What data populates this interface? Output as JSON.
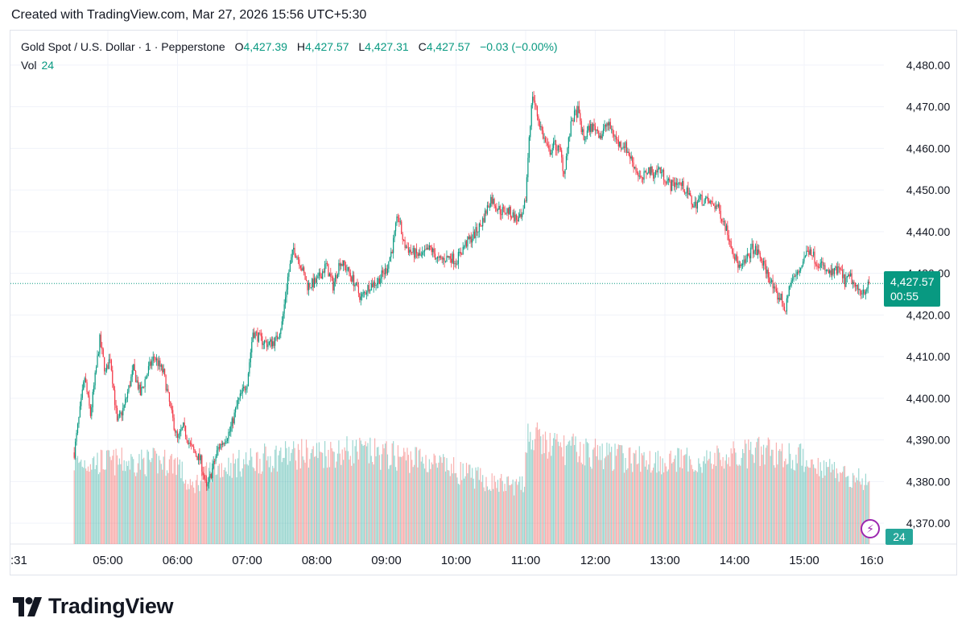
{
  "caption": "Created with TradingView.com, Mar 27, 2026 15:56 UTC+5:30",
  "legend": {
    "symbol": "Gold Spot / U.S. Dollar · 1 · Pepperstone",
    "o_label": "O",
    "o_value": "4,427.39",
    "h_label": "H",
    "h_value": "4,427.57",
    "l_label": "L",
    "l_value": "4,427.31",
    "c_label": "C",
    "c_value": "4,427.57",
    "change": "−0.03 (−0.00%)",
    "vol_label": "Vol",
    "vol_value": "24"
  },
  "price_tag": {
    "price": "4,427.57",
    "countdown": "00:55"
  },
  "vol_tag": "24",
  "colors": {
    "up": "#089981",
    "down": "#f23645",
    "up_vol": "#26a69a",
    "down_vol": "#ef5350",
    "grid": "#f0f3fa",
    "accent": "#9c27b0"
  },
  "brand": {
    "name": "TradingView",
    "icon": "tradingview-logo-icon"
  },
  "chart_data": {
    "type": "candlestick",
    "interval": "1 minute",
    "ylim": [
      4365,
      4485
    ],
    "y_ticks": [
      "4,370.00",
      "4,380.00",
      "4,390.00",
      "4,400.00",
      "4,410.00",
      "4,420.00",
      "4,430.00",
      "4,440.00",
      "4,450.00",
      "4,460.00",
      "4,470.00",
      "4,480.00"
    ],
    "x_ticks": [
      ":31",
      "05:00",
      "06:00",
      "07:00",
      "08:00",
      "09:00",
      "10:00",
      "11:00",
      "12:00",
      "13:00",
      "14:00",
      "15:00",
      "16:0"
    ],
    "last_price": 4427.57,
    "close_path": [
      [
        "04:31",
        4387
      ],
      [
        "04:40",
        4405
      ],
      [
        "04:45",
        4396
      ],
      [
        "04:53",
        4414
      ],
      [
        "04:58",
        4406
      ],
      [
        "05:02",
        4410
      ],
      [
        "05:08",
        4394
      ],
      [
        "05:14",
        4398
      ],
      [
        "05:22",
        4407
      ],
      [
        "05:28",
        4401
      ],
      [
        "05:35",
        4407
      ],
      [
        "05:40",
        4410
      ],
      [
        "05:48",
        4406
      ],
      [
        "05:55",
        4396
      ],
      [
        "06:00",
        4390
      ],
      [
        "06:05",
        4393
      ],
      [
        "06:12",
        4388
      ],
      [
        "06:20",
        4385
      ],
      [
        "06:25",
        4378
      ],
      [
        "06:35",
        4388
      ],
      [
        "06:45",
        4392
      ],
      [
        "06:52",
        4399
      ],
      [
        "07:00",
        4404
      ],
      [
        "07:05",
        4416
      ],
      [
        "07:12",
        4414
      ],
      [
        "07:18",
        4413
      ],
      [
        "07:25",
        4414
      ],
      [
        "07:30",
        4418
      ],
      [
        "07:35",
        4429
      ],
      [
        "07:40",
        4436
      ],
      [
        "07:45",
        4433
      ],
      [
        "07:52",
        4427
      ],
      [
        "08:00",
        4428
      ],
      [
        "08:08",
        4432
      ],
      [
        "08:14",
        4427
      ],
      [
        "08:20",
        4433
      ],
      [
        "08:26",
        4431
      ],
      [
        "08:32",
        4428
      ],
      [
        "08:38",
        4424
      ],
      [
        "08:45",
        4427
      ],
      [
        "08:52",
        4428
      ],
      [
        "09:00",
        4431
      ],
      [
        "09:05",
        4436
      ],
      [
        "09:10",
        4444
      ],
      [
        "09:15",
        4437
      ],
      [
        "09:22",
        4435
      ],
      [
        "09:30",
        4434
      ],
      [
        "09:38",
        4436
      ],
      [
        "09:45",
        4433
      ],
      [
        "09:55",
        4434
      ],
      [
        "10:00",
        4433
      ],
      [
        "10:08",
        4437
      ],
      [
        "10:15",
        4439
      ],
      [
        "10:22",
        4442
      ],
      [
        "10:30",
        4448
      ],
      [
        "10:38",
        4445
      ],
      [
        "10:45",
        4445
      ],
      [
        "10:52",
        4443
      ],
      [
        "10:57",
        4443
      ],
      [
        "11:00",
        4448
      ],
      [
        "11:03",
        4463
      ],
      [
        "11:06",
        4473
      ],
      [
        "11:10",
        4468
      ],
      [
        "11:15",
        4463
      ],
      [
        "11:20",
        4459
      ],
      [
        "11:25",
        4461
      ],
      [
        "11:30",
        4459
      ],
      [
        "11:33",
        4454
      ],
      [
        "11:36",
        4460
      ],
      [
        "11:40",
        4467
      ],
      [
        "11:45",
        4469
      ],
      [
        "11:50",
        4462
      ],
      [
        "11:55",
        4465
      ],
      [
        "12:00",
        4465
      ],
      [
        "12:05",
        4463
      ],
      [
        "12:10",
        4466
      ],
      [
        "12:15",
        4464
      ],
      [
        "12:20",
        4461
      ],
      [
        "12:25",
        4461
      ],
      [
        "12:30",
        4458
      ],
      [
        "12:35",
        4455
      ],
      [
        "12:40",
        4452
      ],
      [
        "12:45",
        4455
      ],
      [
        "12:50",
        4454
      ],
      [
        "12:55",
        4455
      ],
      [
        "13:00",
        4453
      ],
      [
        "13:05",
        4451
      ],
      [
        "13:10",
        4452
      ],
      [
        "13:15",
        4451
      ],
      [
        "13:20",
        4449
      ],
      [
        "13:25",
        4446
      ],
      [
        "13:30",
        4448
      ],
      [
        "13:38",
        4447
      ],
      [
        "13:45",
        4446
      ],
      [
        "13:50",
        4443
      ],
      [
        "13:55",
        4439
      ],
      [
        "14:00",
        4434
      ],
      [
        "14:05",
        4431
      ],
      [
        "14:10",
        4433
      ],
      [
        "14:15",
        4436
      ],
      [
        "14:20",
        4435
      ],
      [
        "14:25",
        4432
      ],
      [
        "14:30",
        4429
      ],
      [
        "14:35",
        4425
      ],
      [
        "14:40",
        4424
      ],
      [
        "14:44",
        4421
      ],
      [
        "14:48",
        4428
      ],
      [
        "14:55",
        4430
      ],
      [
        "15:00",
        4434
      ],
      [
        "15:05",
        4436
      ],
      [
        "15:10",
        4433
      ],
      [
        "15:15",
        4432
      ],
      [
        "15:20",
        4430
      ],
      [
        "15:25",
        4430
      ],
      [
        "15:30",
        4431
      ],
      [
        "15:35",
        4428
      ],
      [
        "15:40",
        4429
      ],
      [
        "15:45",
        4426
      ],
      [
        "15:52",
        4426
      ],
      [
        "15:56",
        4427.57
      ]
    ],
    "volume_envelope": [
      [
        "04:31",
        60
      ],
      [
        "06:00",
        60
      ],
      [
        "06:10",
        40
      ],
      [
        "06:30",
        55
      ],
      [
        "07:30",
        65
      ],
      [
        "08:30",
        68
      ],
      [
        "09:30",
        62
      ],
      [
        "10:30",
        45
      ],
      [
        "10:59",
        42
      ],
      [
        "11:00",
        80
      ],
      [
        "11:20",
        72
      ],
      [
        "12:30",
        62
      ],
      [
        "13:30",
        60
      ],
      [
        "14:30",
        68
      ],
      [
        "15:00",
        62
      ],
      [
        "15:56",
        45
      ]
    ]
  }
}
